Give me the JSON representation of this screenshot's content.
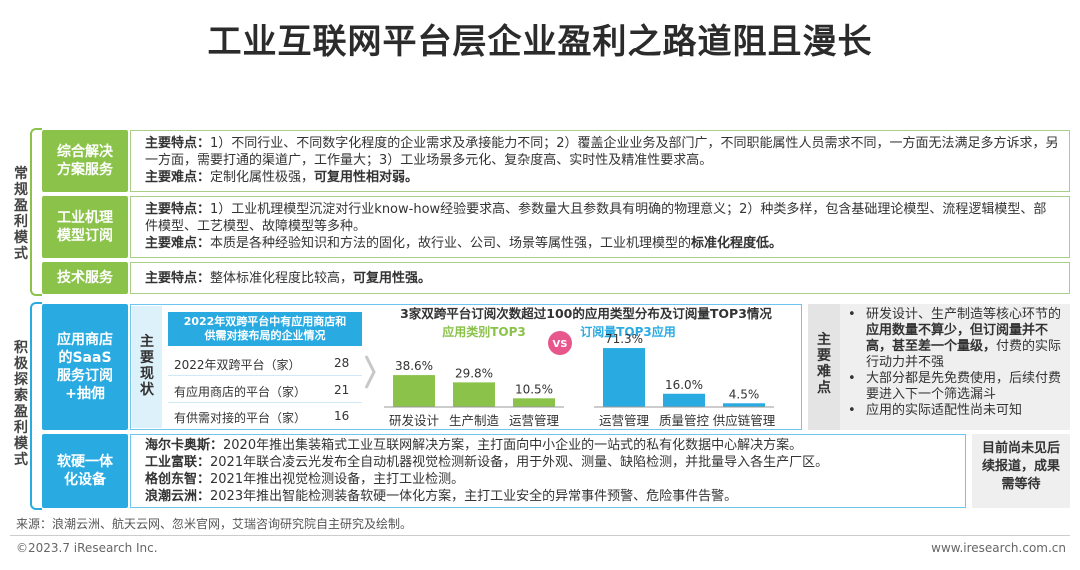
{
  "title": "工业互联网平台层企业盈利之路道阻且漫长",
  "groups": {
    "conventional": "常规盈利模式",
    "active": "积极探索盈利模式"
  },
  "rows": {
    "integrated": {
      "category": "综合解决方案服务",
      "line1_label": "主要特点：",
      "line1_text": "1）不同行业、不同数字化程度的企业需求及承接能力不同；2）覆盖企业业务及部门广，不同职能属性人员需求不同，一方面无法满足多方诉求，另一方面，需要打通的渠道广，工作量大；3）工业场景多元化、复杂度高、实时性及精准性要求高。",
      "line2_label": "主要难点：",
      "line2_text": "定制化属性极强，",
      "line2_bold": "可复用性相对弱。"
    },
    "mechanism": {
      "category": "工业机理模型订阅",
      "line1_label": "主要特点：",
      "line1_text": "1）工业机理模型沉淀对行业know-how经验要求高、参数量大且参数具有明确的物理意义；2）种类多样，包含基础理论模型、流程逻辑模型、部件模型、工艺模型、故障模型等多种。",
      "line2_label": "主要难点：",
      "line2_text": "本质是各种经验知识和方法的固化，故行业、公司、场景等属性强，工业机理模型的",
      "line2_bold": "标准化程度低。"
    },
    "tech": {
      "category": "技术服务",
      "line1_label": "主要特点：",
      "line1_text": "整体标准化程度比较高，",
      "line1_bold": "可复用性强。"
    },
    "appstore": {
      "category": "应用商店的SaaS服务订阅+抽佣",
      "status_label": "主要现状",
      "table_title": "2022年双跨平台中有应用商店和供需对接布局的企业情况",
      "table": [
        {
          "name": "2022年双跨平台（家）",
          "value": "28"
        },
        {
          "name": "有应用商店的平台（家）",
          "value": "21"
        },
        {
          "name": "有供需对接的平台（家）",
          "value": "16"
        }
      ],
      "issue_label": "主要难点",
      "issues": [
        {
          "pre": "研发设计、生产制造等核心环节的",
          "bold": "应用数量不算少，但订阅量并不高，甚至差一个量级，",
          "post": "付费的实际行动力并不强"
        },
        {
          "pre": "大部分都是先免费使用，后续付费要进入下一个筛选漏斗",
          "bold": "",
          "post": ""
        },
        {
          "pre": "应用的实际适配性尚未可知",
          "bold": "",
          "post": ""
        }
      ]
    },
    "hardware": {
      "category": "软硬一体化设备",
      "items": [
        {
          "company": "海尔卡奥斯：",
          "text": "2020年推出集装箱式工业互联网解决方案，主打面向中小企业的一站式的私有化数据中心解决方案。"
        },
        {
          "company": "工业富联：",
          "text": "2021年联合凌云光发布全自动机器视觉检测新设备，用于外观、测量、缺陷检测，并批量导入各生产厂区。"
        },
        {
          "company": "格创东智：",
          "text": "2021年推出视觉检测设备，主打工业检测。"
        },
        {
          "company": "浪潮云洲：",
          "text": "2023年推出智能检测装备软硬一体化方案，主打工业安全的异常事件预警、危险事件告警。"
        }
      ],
      "side_note": "目前尚未见后续报道，成果需等待"
    }
  },
  "chart_data": {
    "type": "bar",
    "title": "3家双跨平台订阅次数超过100的应用类型分布及订阅量TOP3情况",
    "groups": [
      {
        "name": "应用类别TOP3",
        "color": "#8bc34a",
        "categories": [
          "研发设计",
          "生产制造",
          "运营管理"
        ],
        "values": [
          38.6,
          29.8,
          10.5
        ],
        "labels": [
          "38.6%",
          "29.8%",
          "10.5%"
        ]
      },
      {
        "name": "订阅量TOP3应用",
        "color": "#29abe2",
        "categories": [
          "运营管理",
          "质量管控",
          "供应链管理"
        ],
        "values": [
          71.3,
          16.0,
          4.5
        ],
        "labels": [
          "71.3%",
          "16.0%",
          "4.5%"
        ]
      }
    ],
    "vs_label": "VS",
    "unit": "%",
    "ylim": [
      0,
      75
    ],
    "grid": false
  },
  "footer": {
    "source": "来源：浪潮云洲、航天云网、忽米官网，艾瑞咨询研究院自主研究及绘制。",
    "copyright": "©2023.7 iResearch Inc.",
    "url": "www.iresearch.com.cn"
  }
}
